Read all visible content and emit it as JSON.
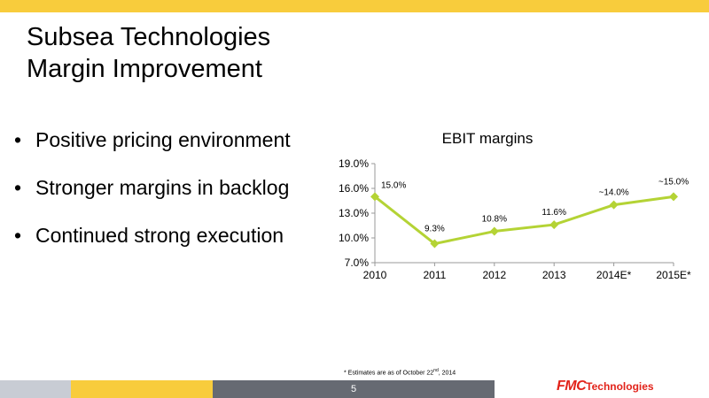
{
  "slide": {
    "title_line1": "Subsea Technologies",
    "title_line2": "Margin Improvement",
    "bullets": [
      "Positive pricing environment",
      "Stronger margins in backlog",
      "Continued strong execution"
    ],
    "footnote_pre": "* Estimates are as of October 22",
    "footnote_sup": "nd",
    "footnote_post": ", 2014",
    "page_number": "5",
    "logo_mark": "FMC",
    "logo_text": "Technologies"
  },
  "colors": {
    "accent_yellow": "#f8cc3c",
    "series_line": "#b4d335",
    "logo_red": "#e2231a"
  },
  "chart_data": {
    "type": "line",
    "title": "EBIT margins",
    "categories": [
      "2010",
      "2011",
      "2012",
      "2013",
      "2014E*",
      "2015E*"
    ],
    "series": [
      {
        "values": [
          15.0,
          9.3,
          10.8,
          11.6,
          14.0,
          15.0
        ],
        "labels": [
          "15.0%",
          "9.3%",
          "10.8%",
          "11.6%",
          "~14.0%",
          "~15.0%"
        ]
      }
    ],
    "ylim": [
      7.0,
      19.0
    ],
    "yticks": [
      "7.0%",
      "10.0%",
      "13.0%",
      "16.0%",
      "19.0%"
    ],
    "ytick_values": [
      7.0,
      10.0,
      13.0,
      16.0,
      19.0
    ],
    "grid": false,
    "marker": "diamond"
  }
}
